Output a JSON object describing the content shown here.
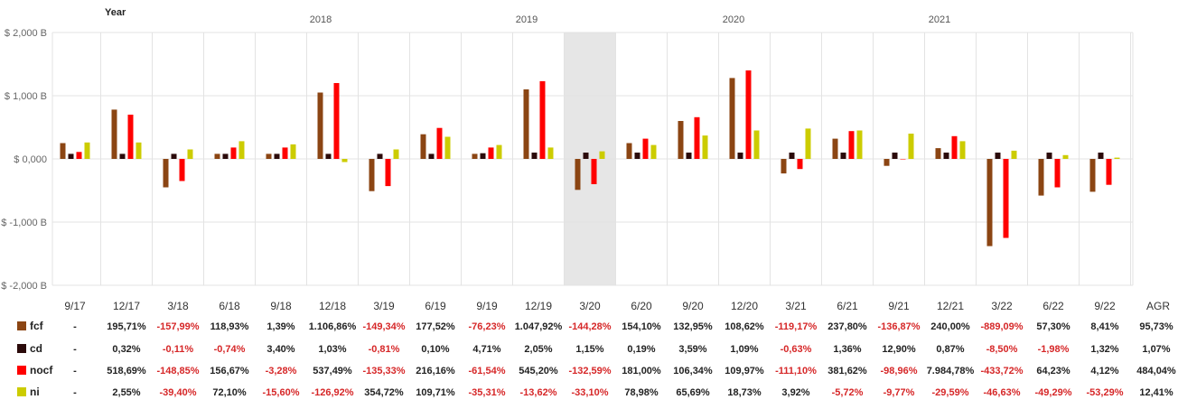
{
  "chart_data": {
    "type": "bar",
    "year_axis_label": "Year",
    "years": [
      "2018",
      "2019",
      "2020",
      "2021"
    ],
    "ylim": [
      -2000,
      2000
    ],
    "yticks": [
      {
        "value": 2000,
        "label": "$ 2,000 B"
      },
      {
        "value": 1000,
        "label": "$ 1,000 B"
      },
      {
        "value": 0,
        "label": "$ 0,000"
      },
      {
        "value": -1000,
        "label": "$ -1,000 B"
      },
      {
        "value": -2000,
        "label": "$ -2,000 B"
      }
    ],
    "categories": [
      "9/17",
      "12/17",
      "3/18",
      "6/18",
      "9/18",
      "12/18",
      "3/19",
      "6/19",
      "9/19",
      "12/19",
      "3/20",
      "6/20",
      "9/20",
      "12/20",
      "3/21",
      "6/21",
      "9/21",
      "12/21",
      "3/22",
      "6/22",
      "9/22"
    ],
    "highlight_category": "3/20",
    "grid": true,
    "series": [
      {
        "name": "fcf",
        "color": "#8B4513",
        "values": [
          250,
          780,
          -450,
          80,
          80,
          1050,
          -510,
          390,
          80,
          1100,
          -490,
          250,
          600,
          1280,
          -230,
          320,
          -110,
          170,
          -1380,
          -580,
          -520
        ],
        "agr_pct": [
          "-",
          "195,71%",
          "-157,99%",
          "118,93%",
          "1,39%",
          "1.106,86%",
          "-149,34%",
          "177,52%",
          "-76,23%",
          "1.047,92%",
          "-144,28%",
          "154,10%",
          "132,95%",
          "108,62%",
          "-119,17%",
          "237,80%",
          "-136,87%",
          "240,00%",
          "-889,09%",
          "57,30%",
          "8,41%"
        ],
        "agr_total": "95,73%"
      },
      {
        "name": "cd",
        "color": "#2B0A0A",
        "values": [
          80,
          80,
          80,
          80,
          80,
          80,
          80,
          80,
          90,
          100,
          100,
          100,
          100,
          100,
          100,
          100,
          100,
          100,
          100,
          100,
          100
        ],
        "agr_pct": [
          "-",
          "0,32%",
          "-0,11%",
          "-0,74%",
          "3,40%",
          "1,03%",
          "-0,81%",
          "0,10%",
          "4,71%",
          "2,05%",
          "1,15%",
          "0,19%",
          "3,59%",
          "1,09%",
          "-0,63%",
          "1,36%",
          "12,90%",
          "0,87%",
          "-8,50%",
          "-1,98%",
          "1,32%"
        ],
        "agr_total": "1,07%"
      },
      {
        "name": "nocf",
        "color": "#FF0000",
        "values": [
          110,
          700,
          -350,
          180,
          180,
          1200,
          -430,
          490,
          180,
          1230,
          -400,
          320,
          660,
          1400,
          -160,
          440,
          0,
          360,
          -1250,
          -450,
          -410
        ],
        "agr_pct": [
          "-",
          "518,69%",
          "-148,85%",
          "156,67%",
          "-3,28%",
          "537,49%",
          "-135,33%",
          "216,16%",
          "-61,54%",
          "545,20%",
          "-132,59%",
          "181,00%",
          "106,34%",
          "109,97%",
          "-111,10%",
          "381,62%",
          "-98,96%",
          "7.984,78%",
          "-433,72%",
          "64,23%",
          "4,12%"
        ],
        "agr_total": "484,04%"
      },
      {
        "name": "ni",
        "color": "#CCCC00",
        "values": [
          260,
          260,
          150,
          280,
          230,
          -50,
          150,
          350,
          220,
          180,
          120,
          220,
          370,
          450,
          480,
          450,
          400,
          280,
          130,
          60,
          20
        ],
        "agr_pct": [
          "-",
          "2,55%",
          "-39,40%",
          "72,10%",
          "-15,60%",
          "-126,92%",
          "354,72%",
          "109,71%",
          "-35,31%",
          "-13,62%",
          "-33,10%",
          "78,98%",
          "65,69%",
          "18,73%",
          "3,92%",
          "-5,72%",
          "-9,77%",
          "-29,59%",
          "-46,63%",
          "-49,29%",
          "-53,29%"
        ],
        "agr_total": "12,41%"
      }
    ],
    "agr_header": "AGR",
    "negative_color": "#D62728",
    "positive_color": "#222222",
    "highlight_color": "#E6E6E6",
    "grid_color": "#E3E3E3"
  }
}
